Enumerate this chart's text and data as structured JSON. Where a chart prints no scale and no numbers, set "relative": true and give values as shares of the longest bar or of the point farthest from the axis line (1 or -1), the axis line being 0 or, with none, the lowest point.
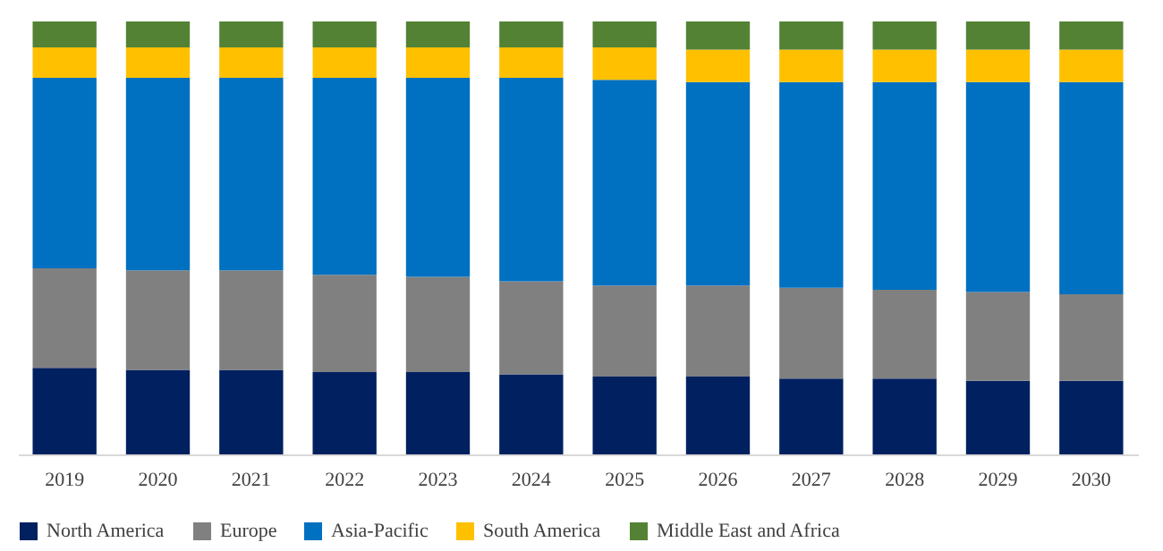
{
  "chart_data": {
    "type": "bar",
    "stacked": true,
    "relative": true,
    "legend": "bottom",
    "grid": false,
    "categories": [
      "2019",
      "2020",
      "2021",
      "2022",
      "2023",
      "2024",
      "2025",
      "2026",
      "2027",
      "2028",
      "2029",
      "2030"
    ],
    "series": [
      {
        "name": "North America",
        "color": "#002060",
        "values": [
          0.2,
          0.195,
          0.195,
          0.19,
          0.19,
          0.185,
          0.18,
          0.18,
          0.175,
          0.175,
          0.17,
          0.17
        ]
      },
      {
        "name": "Europe",
        "color": "#808080",
        "values": [
          0.23,
          0.23,
          0.23,
          0.225,
          0.22,
          0.215,
          0.21,
          0.21,
          0.21,
          0.205,
          0.205,
          0.2
        ]
      },
      {
        "name": "Asia-Pacific",
        "color": "#0070c0",
        "values": [
          0.44,
          0.445,
          0.445,
          0.455,
          0.46,
          0.47,
          0.475,
          0.47,
          0.475,
          0.48,
          0.485,
          0.49
        ]
      },
      {
        "name": "South America",
        "color": "#ffc000",
        "values": [
          0.07,
          0.07,
          0.07,
          0.07,
          0.07,
          0.07,
          0.075,
          0.075,
          0.075,
          0.075,
          0.075,
          0.075
        ]
      },
      {
        "name": "Middle East and Africa",
        "color": "#548235",
        "values": [
          0.06,
          0.06,
          0.06,
          0.06,
          0.06,
          0.06,
          0.06,
          0.065,
          0.065,
          0.065,
          0.065,
          0.065
        ]
      }
    ]
  }
}
